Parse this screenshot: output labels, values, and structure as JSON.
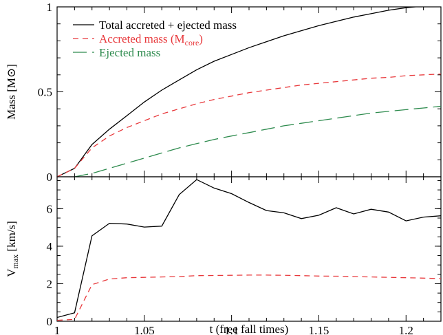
{
  "chart_data": [
    {
      "type": "line",
      "ylabel": "Mass [M⊙]",
      "xlim": [
        1,
        1.22
      ],
      "ylim": [
        0,
        1
      ],
      "yticks": [
        {
          "value": 0,
          "label": "0"
        },
        {
          "value": 0.5,
          "label": "0.5"
        },
        {
          "value": 1,
          "label": "1"
        }
      ],
      "legend": {
        "placement": "top-left",
        "entries": [
          {
            "series": 0,
            "text": "Total accreted + ejected mass",
            "sub": ""
          },
          {
            "series": 1,
            "text": "Accreted mass (M",
            "sub": "core",
            "suffix": ")"
          },
          {
            "series": 2,
            "text": "Ejected mass",
            "sub": ""
          }
        ]
      },
      "series": [
        {
          "color": "#000000",
          "dash": "solid",
          "x": [
            1.0,
            1.01,
            1.02,
            1.03,
            1.04,
            1.05,
            1.06,
            1.07,
            1.08,
            1.09,
            1.1,
            1.11,
            1.12,
            1.13,
            1.14,
            1.15,
            1.16,
            1.17,
            1.18,
            1.19,
            1.2,
            1.21,
            1.22
          ],
          "y": [
            0.0,
            0.05,
            0.19,
            0.28,
            0.36,
            0.44,
            0.51,
            0.57,
            0.63,
            0.68,
            0.72,
            0.76,
            0.795,
            0.83,
            0.86,
            0.89,
            0.915,
            0.94,
            0.96,
            0.98,
            0.995,
            1.005,
            1.01
          ]
        },
        {
          "color": "#e8383b",
          "dash": "dashed",
          "x": [
            1.0,
            1.01,
            1.02,
            1.03,
            1.04,
            1.05,
            1.06,
            1.07,
            1.08,
            1.09,
            1.1,
            1.11,
            1.12,
            1.13,
            1.14,
            1.15,
            1.16,
            1.17,
            1.18,
            1.19,
            1.2,
            1.21,
            1.22
          ],
          "y": [
            0.0,
            0.05,
            0.17,
            0.24,
            0.29,
            0.33,
            0.37,
            0.4,
            0.43,
            0.455,
            0.475,
            0.495,
            0.51,
            0.525,
            0.54,
            0.55,
            0.56,
            0.57,
            0.58,
            0.585,
            0.595,
            0.6,
            0.605
          ]
        },
        {
          "color": "#2e8b4e",
          "dash": "longdash",
          "x": [
            1.01,
            1.02,
            1.03,
            1.04,
            1.05,
            1.06,
            1.07,
            1.08,
            1.09,
            1.1,
            1.11,
            1.12,
            1.13,
            1.14,
            1.15,
            1.16,
            1.17,
            1.18,
            1.19,
            1.2,
            1.21,
            1.22
          ],
          "y": [
            0.0,
            0.02,
            0.05,
            0.08,
            0.11,
            0.14,
            0.17,
            0.195,
            0.22,
            0.24,
            0.26,
            0.28,
            0.3,
            0.315,
            0.33,
            0.345,
            0.36,
            0.375,
            0.385,
            0.395,
            0.405,
            0.415
          ]
        }
      ]
    },
    {
      "type": "line",
      "xlabel": "t (free fall times)",
      "ylabel_main": "V",
      "ylabel_sub": "max",
      "ylabel_unit": " [km/s]",
      "xlim": [
        1,
        1.22
      ],
      "ylim": [
        0,
        7.7
      ],
      "xticks": [
        {
          "value": 1,
          "label": "1"
        },
        {
          "value": 1.05,
          "label": "1.05"
        },
        {
          "value": 1.1,
          "label": "1.1"
        },
        {
          "value": 1.15,
          "label": "1.15"
        },
        {
          "value": 1.2,
          "label": "1.2"
        }
      ],
      "yticks": [
        {
          "value": 0,
          "label": "0"
        },
        {
          "value": 2,
          "label": "2"
        },
        {
          "value": 4,
          "label": "4"
        },
        {
          "value": 6,
          "label": "6"
        }
      ],
      "series": [
        {
          "color": "#000000",
          "dash": "solid",
          "x": [
            1.0,
            1.01,
            1.02,
            1.03,
            1.04,
            1.05,
            1.06,
            1.07,
            1.08,
            1.09,
            1.1,
            1.11,
            1.12,
            1.13,
            1.14,
            1.15,
            1.16,
            1.17,
            1.18,
            1.19,
            1.2,
            1.21,
            1.22
          ],
          "y": [
            0.2,
            0.45,
            4.55,
            5.22,
            5.18,
            5.02,
            5.07,
            6.75,
            7.55,
            7.1,
            6.8,
            6.33,
            5.9,
            5.78,
            5.47,
            5.65,
            6.05,
            5.72,
            5.97,
            5.82,
            5.35,
            5.55,
            5.62
          ]
        },
        {
          "color": "#e8383b",
          "dash": "dashed",
          "x": [
            1.0,
            1.01,
            1.02,
            1.03,
            1.04,
            1.05,
            1.06,
            1.07,
            1.08,
            1.09,
            1.1,
            1.11,
            1.12,
            1.13,
            1.14,
            1.15,
            1.16,
            1.17,
            1.18,
            1.19,
            1.2,
            1.21,
            1.22
          ],
          "y": [
            0.05,
            0.1,
            1.95,
            2.25,
            2.32,
            2.34,
            2.36,
            2.38,
            2.43,
            2.44,
            2.45,
            2.46,
            2.46,
            2.45,
            2.43,
            2.41,
            2.4,
            2.38,
            2.36,
            2.34,
            2.32,
            2.3,
            2.27
          ]
        }
      ]
    }
  ]
}
